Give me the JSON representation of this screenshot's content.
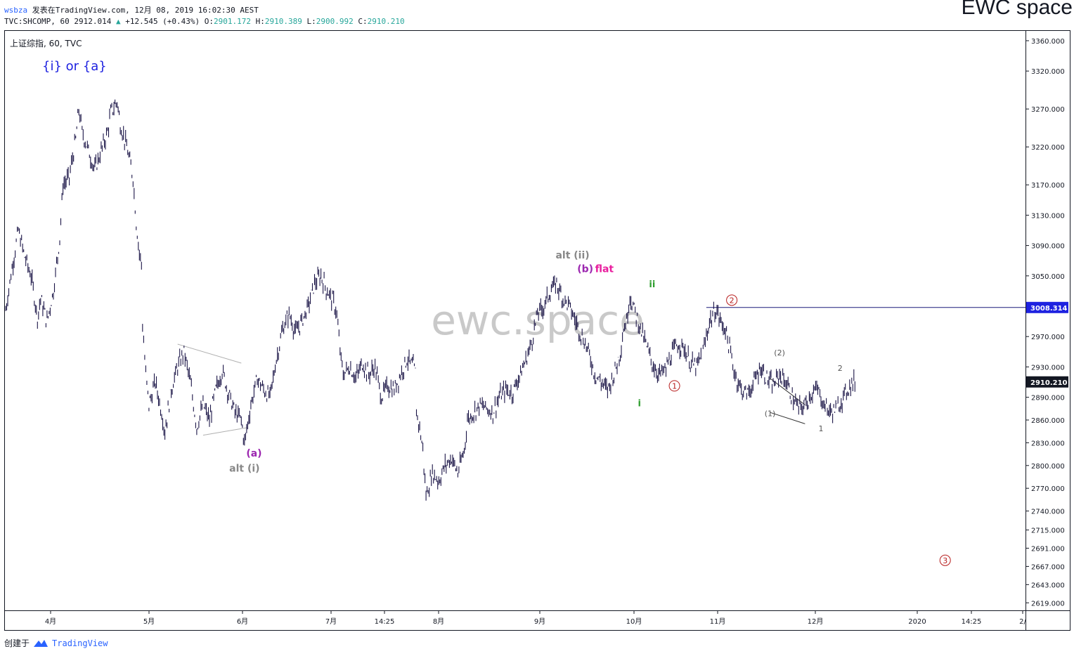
{
  "header": {
    "user": "wsbza",
    "published_text": "发表在TradingView.com, 12月 08, 2019 16:02:30 AEST",
    "symbol_line": "TVC:SHCOMP, 60 2912.014",
    "change_arrow": "▲",
    "change": "+12.545 (+0.43%)",
    "o_label": "O:",
    "o_value": "2901.172",
    "h_label": "H:",
    "h_value": "2910.389",
    "l_label": "L:",
    "l_value": "2900.992",
    "c_label": "C:",
    "c_value": "2910.210"
  },
  "brand": "EWC space",
  "watermark": "ewc.space",
  "footer": {
    "created_by": "创建于",
    "tv_name": "TradingView"
  },
  "colors": {
    "candle": "#1a1446",
    "level_line": "#1a1a7a",
    "price_tag": "#131722",
    "purple": "#9c27b0",
    "magenta": "#e91e9e",
    "grey": "#888888",
    "green": "#2e9e2e",
    "red": "#b71c1c",
    "blue": "#1e22e0"
  },
  "chart_data": {
    "type": "line",
    "title": "上证综指, 60, TVC",
    "x_labels": [
      "4月",
      "5月",
      "6月",
      "7月",
      "14:25",
      "8月",
      "9月",
      "10月",
      "11月",
      "12月",
      "2020",
      "14:25",
      "2/"
    ],
    "y_ticks": [
      "3360.000",
      "3320.000",
      "3270.000",
      "3220.000",
      "3170.000",
      "3130.000",
      "3090.000",
      "3050.000",
      "2970.000",
      "2930.000",
      "2890.000",
      "2860.000",
      "2830.000",
      "2800.000",
      "2770.000",
      "2740.000",
      "2715.000",
      "2691.000",
      "2667.000",
      "2643.000",
      "2619.000"
    ],
    "y_tick_values": [
      3360,
      3320,
      3270,
      3220,
      3170,
      3130,
      3090,
      3050,
      2970,
      2930,
      2890,
      2860,
      2830,
      2800,
      2770,
      2740,
      2715,
      2691,
      2667,
      2643,
      2619
    ],
    "y_range": [
      2610,
      3372
    ],
    "level_line": {
      "value": 3008.314,
      "label": "3008.314"
    },
    "last_price": {
      "value": 2910.21,
      "label": "2910.210"
    },
    "price_path": [
      [
        0,
        3005
      ],
      [
        2,
        3060
      ],
      [
        4,
        3110
      ],
      [
        6,
        3075
      ],
      [
        8,
        3050
      ],
      [
        10,
        2995
      ],
      [
        11,
        3020
      ],
      [
        13,
        2990
      ],
      [
        15,
        3030
      ],
      [
        17,
        3100
      ],
      [
        18,
        3170
      ],
      [
        20,
        3180
      ],
      [
        22,
        3230
      ],
      [
        23,
        3270
      ],
      [
        24,
        3240
      ],
      [
        26,
        3215
      ],
      [
        28,
        3190
      ],
      [
        30,
        3215
      ],
      [
        32,
        3240
      ],
      [
        33,
        3265
      ],
      [
        35,
        3280
      ],
      [
        36,
        3250
      ],
      [
        38,
        3220
      ],
      [
        40,
        3180
      ],
      [
        41,
        3120
      ],
      [
        42,
        3080
      ],
      [
        43,
        3060
      ],
      [
        43,
        2985
      ],
      [
        44,
        2920
      ],
      [
        45,
        2880
      ],
      [
        47,
        2910
      ],
      [
        49,
        2870
      ],
      [
        50,
        2845
      ],
      [
        52,
        2900
      ],
      [
        54,
        2930
      ],
      [
        56,
        2950
      ],
      [
        58,
        2910
      ],
      [
        60,
        2850
      ],
      [
        62,
        2880
      ],
      [
        64,
        2860
      ],
      [
        66,
        2900
      ],
      [
        68,
        2925
      ],
      [
        70,
        2895
      ],
      [
        72,
        2870
      ],
      [
        74,
        2860
      ],
      [
        75,
        2830
      ],
      [
        77,
        2880
      ],
      [
        79,
        2915
      ],
      [
        81,
        2900
      ],
      [
        83,
        2890
      ],
      [
        85,
        2940
      ],
      [
        87,
        2980
      ],
      [
        89,
        3000
      ],
      [
        91,
        2975
      ],
      [
        93,
        2990
      ],
      [
        95,
        3010
      ],
      [
        97,
        3040
      ],
      [
        99,
        3050
      ],
      [
        101,
        3030
      ],
      [
        103,
        3015
      ],
      [
        104,
        3000
      ],
      [
        105,
        2950
      ],
      [
        106,
        2920
      ],
      [
        108,
        2930
      ],
      [
        110,
        2915
      ],
      [
        112,
        2935
      ],
      [
        114,
        2920
      ],
      [
        116,
        2930
      ],
      [
        118,
        2890
      ],
      [
        120,
        2905
      ],
      [
        122,
        2900
      ],
      [
        124,
        2920
      ],
      [
        126,
        2940
      ],
      [
        128,
        2930
      ],
      [
        129,
        2920
      ],
      [
        129,
        2870
      ],
      [
        130,
        2850
      ],
      [
        131,
        2820
      ],
      [
        132,
        2760
      ],
      [
        134,
        2790
      ],
      [
        136,
        2780
      ],
      [
        138,
        2800
      ],
      [
        140,
        2810
      ],
      [
        142,
        2790
      ],
      [
        144,
        2820
      ],
      [
        145,
        2860
      ],
      [
        147,
        2870
      ],
      [
        149,
        2880
      ],
      [
        151,
        2875
      ],
      [
        153,
        2870
      ],
      [
        155,
        2890
      ],
      [
        157,
        2900
      ],
      [
        159,
        2895
      ],
      [
        161,
        2915
      ],
      [
        163,
        2935
      ],
      [
        165,
        2960
      ],
      [
        167,
        3000
      ],
      [
        169,
        3010
      ],
      [
        171,
        3030
      ],
      [
        173,
        3040
      ],
      [
        175,
        3020
      ],
      [
        177,
        3010
      ],
      [
        179,
        2990
      ],
      [
        181,
        2970
      ],
      [
        183,
        2950
      ],
      [
        185,
        2920
      ],
      [
        187,
        2910
      ],
      [
        189,
        2900
      ],
      [
        191,
        2920
      ],
      [
        193,
        2950
      ],
      [
        194,
        2980
      ],
      [
        195,
        2990
      ],
      [
        196,
        3025
      ],
      [
        197,
        3010
      ],
      [
        199,
        2985
      ],
      [
        201,
        2960
      ],
      [
        203,
        2935
      ],
      [
        205,
        2920
      ],
      [
        207,
        2925
      ],
      [
        209,
        2945
      ],
      [
        211,
        2960
      ],
      [
        213,
        2955
      ],
      [
        215,
        2935
      ],
      [
        217,
        2930
      ],
      [
        219,
        2950
      ],
      [
        221,
        2990
      ],
      [
        223,
        3005
      ],
      [
        225,
        2985
      ],
      [
        226,
        2980
      ],
      [
        227,
        2960
      ],
      [
        229,
        2920
      ],
      [
        231,
        2900
      ],
      [
        233,
        2895
      ],
      [
        235,
        2910
      ],
      [
        237,
        2930
      ],
      [
        239,
        2915
      ],
      [
        241,
        2905
      ],
      [
        243,
        2920
      ],
      [
        245,
        2910
      ],
      [
        247,
        2890
      ],
      [
        249,
        2875
      ],
      [
        251,
        2880
      ],
      [
        253,
        2895
      ],
      [
        255,
        2900
      ],
      [
        257,
        2880
      ],
      [
        259,
        2870
      ],
      [
        261,
        2875
      ],
      [
        263,
        2890
      ],
      [
        265,
        2905
      ],
      [
        267,
        2912
      ]
    ],
    "drawn_lines": [
      {
        "from": [
          54,
          2960
        ],
        "to": [
          74,
          2935
        ]
      },
      {
        "from": [
          62,
          2840
        ],
        "to": [
          76,
          2850
        ]
      },
      {
        "from": [
          240,
          2915
        ],
        "to": [
          251,
          2880
        ]
      },
      {
        "from": [
          240,
          2870
        ],
        "to": [
          251,
          2855
        ]
      }
    ],
    "annotations": [
      {
        "text": "{i} or {a}",
        "role": "corner-title"
      },
      {
        "text": "(a)",
        "x": 78,
        "y": 2812
      },
      {
        "text": "alt (i)",
        "x": 75,
        "y": 2792
      },
      {
        "text": "alt (ii)",
        "x": 178,
        "y": 3073
      },
      {
        "text": "(b)",
        "x": 182,
        "y": 3055
      },
      {
        "text": "flat",
        "x": 188,
        "y": 3055
      },
      {
        "text": "ii",
        "x": 203,
        "y": 3035
      },
      {
        "text": "i",
        "x": 199,
        "y": 2878
      },
      {
        "text": "2",
        "x": 228,
        "y": 3018,
        "circled": true
      },
      {
        "text": "1",
        "x": 210,
        "y": 2905,
        "circled": true
      },
      {
        "text": "(2)",
        "x": 243,
        "y": 2945
      },
      {
        "text": "(1)",
        "x": 240,
        "y": 2865
      },
      {
        "text": "2",
        "x": 262,
        "y": 2925
      },
      {
        "text": "1",
        "x": 256,
        "y": 2845
      },
      {
        "text": "3",
        "x": 295,
        "y": 2675,
        "circled": true
      }
    ],
    "x_domain": [
      0,
      320
    ]
  }
}
